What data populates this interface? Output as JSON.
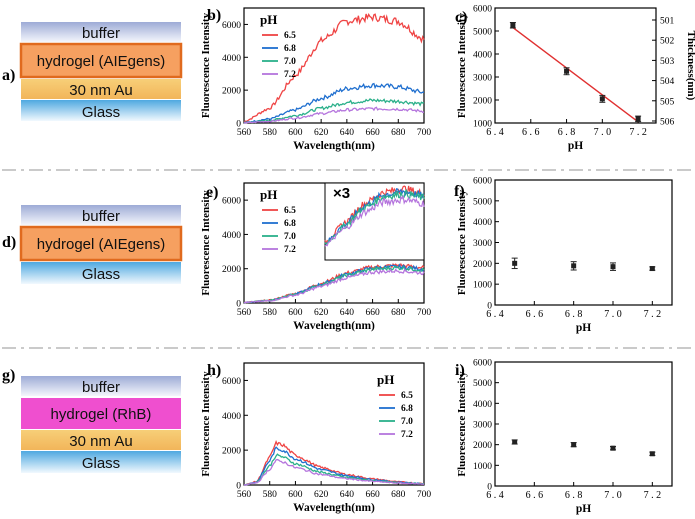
{
  "panels": {
    "a": {
      "label": "a)",
      "layers": [
        "buffer",
        "hydrogel (AIEgens)",
        "30 nm Au",
        "Glass"
      ]
    },
    "b": {
      "label": "b)"
    },
    "c": {
      "label": "c)"
    },
    "d": {
      "label": "d)",
      "layers": [
        "buffer",
        "hydrogel (AIEgens)",
        "Glass"
      ]
    },
    "e": {
      "label": "e)",
      "inset_label": "×3"
    },
    "f": {
      "label": "f)"
    },
    "g": {
      "label": "g)",
      "layers": [
        "buffer",
        "hydrogel (RhB)",
        "30 nm Au",
        "Glass"
      ]
    },
    "h": {
      "label": "h)"
    },
    "i": {
      "label": "i)"
    }
  },
  "colors": {
    "buffer_top": "#9dabd6",
    "buffer_bottom": "#f4f6fc",
    "hydrogel_aie": "#f6a060",
    "hydrogel_aie_border": "#e06a1e",
    "hydrogel_rhb": "#ef4fcf",
    "gold_top": "#f7cc73",
    "gold_bottom": "#f2b55a",
    "glass_top": "#5aaee2",
    "glass_bottom": "#eef7fd",
    "pH_6.5": "#ef4444",
    "pH_6.8": "#1f6fcf",
    "pH_7.0": "#2bb08a",
    "pH_7.2": "#b575dd",
    "fit_line": "#e03030",
    "separator": "#b8b8b8"
  },
  "chart_data": [
    {
      "id": "b",
      "type": "line",
      "xlabel": "Wavelength(nm)",
      "ylabel": "Fluorescence Intensity",
      "xlim": [
        560,
        700
      ],
      "ylim": [
        0,
        7000
      ],
      "xticks": [
        560,
        580,
        600,
        620,
        640,
        660,
        680,
        700
      ],
      "yticks": [
        0,
        2000,
        4000,
        6000
      ],
      "legend_title": "pH",
      "legend_position": "top-left",
      "series": [
        {
          "name": "6.5",
          "x": [
            560,
            580,
            600,
            620,
            640,
            660,
            680,
            700
          ],
          "values": [
            80,
            900,
            2900,
            5000,
            6200,
            6450,
            6200,
            5100
          ]
        },
        {
          "name": "6.8",
          "x": [
            560,
            580,
            600,
            620,
            640,
            660,
            680,
            700
          ],
          "values": [
            30,
            250,
            800,
            1500,
            2100,
            2300,
            2200,
            1850
          ]
        },
        {
          "name": "7.0",
          "x": [
            560,
            580,
            600,
            620,
            640,
            660,
            680,
            700
          ],
          "values": [
            20,
            150,
            450,
            900,
            1250,
            1380,
            1320,
            1150
          ]
        },
        {
          "name": "7.2",
          "x": [
            560,
            580,
            600,
            620,
            640,
            660,
            680,
            700
          ],
          "values": [
            10,
            100,
            300,
            580,
            800,
            870,
            850,
            720
          ]
        }
      ]
    },
    {
      "id": "c",
      "type": "scatter",
      "xlabel": "pH",
      "ylabel": "Fluorescence Intensity",
      "ylabel_right": "Thickness(nm)",
      "xlim": [
        6.4,
        7.3
      ],
      "ylim": [
        1000,
        6000
      ],
      "xticks": [
        6.4,
        6.6,
        6.8,
        7.0,
        7.2
      ],
      "yticks": [
        1000,
        2000,
        3000,
        4000,
        5000,
        6000
      ],
      "right_ticks": [
        501,
        502,
        503,
        504,
        505,
        506
      ],
      "x": [
        6.5,
        6.8,
        7.0,
        7.2
      ],
      "values": [
        5250,
        3250,
        2050,
        1180
      ],
      "fit_line": {
        "x": [
          6.5,
          7.2
        ],
        "y": [
          5150,
          1050
        ]
      }
    },
    {
      "id": "e",
      "type": "line",
      "xlabel": "Wavelength(nm)",
      "ylabel": "Fluorescence Intensity",
      "xlim": [
        560,
        700
      ],
      "ylim": [
        0,
        7000
      ],
      "xticks": [
        560,
        580,
        600,
        620,
        640,
        660,
        680,
        700
      ],
      "yticks": [
        0,
        2000,
        4000,
        6000
      ],
      "legend_title": "pH",
      "legend_position": "top-left",
      "series": [
        {
          "name": "6.5",
          "x": [
            560,
            580,
            600,
            620,
            640,
            660,
            680,
            700
          ],
          "values": [
            30,
            160,
            550,
            1150,
            1750,
            2100,
            2200,
            2050
          ]
        },
        {
          "name": "6.8",
          "x": [
            560,
            580,
            600,
            620,
            640,
            660,
            680,
            700
          ],
          "values": [
            30,
            150,
            520,
            1100,
            1680,
            2030,
            2120,
            1980
          ]
        },
        {
          "name": "7.0",
          "x": [
            560,
            580,
            600,
            620,
            640,
            660,
            680,
            700
          ],
          "values": [
            30,
            145,
            500,
            1060,
            1620,
            1970,
            2060,
            1920
          ]
        },
        {
          "name": "7.2",
          "x": [
            560,
            580,
            600,
            620,
            640,
            660,
            680,
            700
          ],
          "values": [
            25,
            130,
            460,
            970,
            1480,
            1800,
            1880,
            1750
          ]
        }
      ]
    },
    {
      "id": "f",
      "type": "scatter",
      "xlabel": "pH",
      "ylabel": "Fluorescence Intensity",
      "xlim": [
        6.4,
        7.3
      ],
      "ylim": [
        0,
        6000
      ],
      "xticks": [
        6.4,
        6.6,
        6.8,
        7.0,
        7.2
      ],
      "yticks": [
        0,
        1000,
        2000,
        3000,
        4000,
        5000,
        6000
      ],
      "x": [
        6.5,
        6.8,
        7.0,
        7.2
      ],
      "values": [
        2000,
        1880,
        1840,
        1750
      ],
      "errors": [
        250,
        200,
        180,
        80
      ]
    },
    {
      "id": "h",
      "type": "line",
      "xlabel": "Wavelength(nm)",
      "ylabel": "Fluorescence Intensity",
      "xlim": [
        560,
        700
      ],
      "ylim": [
        0,
        7000
      ],
      "xticks": [
        560,
        580,
        600,
        620,
        640,
        660,
        680,
        700
      ],
      "yticks": [
        0,
        2000,
        4000,
        6000
      ],
      "legend_title": "pH",
      "legend_position": "top-right",
      "series": [
        {
          "name": "6.5",
          "x": [
            560,
            570,
            580,
            585,
            590,
            600,
            620,
            640,
            660,
            680,
            700
          ],
          "values": [
            0,
            200,
            1600,
            2400,
            2300,
            1700,
            1000,
            600,
            350,
            180,
            80
          ]
        },
        {
          "name": "6.8",
          "x": [
            560,
            570,
            580,
            585,
            590,
            600,
            620,
            640,
            660,
            680,
            700
          ],
          "values": [
            0,
            180,
            1400,
            2100,
            2000,
            1500,
            880,
            530,
            310,
            160,
            70
          ]
        },
        {
          "name": "7.0",
          "x": [
            560,
            570,
            580,
            585,
            590,
            600,
            620,
            640,
            660,
            680,
            700
          ],
          "values": [
            0,
            150,
            1100,
            1700,
            1620,
            1220,
            720,
            430,
            250,
            130,
            60
          ]
        },
        {
          "name": "7.2",
          "x": [
            560,
            570,
            580,
            585,
            590,
            600,
            620,
            640,
            660,
            680,
            700
          ],
          "values": [
            0,
            130,
            900,
            1400,
            1330,
            1000,
            600,
            360,
            210,
            110,
            50
          ]
        }
      ]
    },
    {
      "id": "i",
      "type": "scatter",
      "xlabel": "pH",
      "ylabel": "Fluorescence Intensity",
      "xlim": [
        6.4,
        7.3
      ],
      "ylim": [
        0,
        6000
      ],
      "xticks": [
        6.4,
        6.6,
        6.8,
        7.0,
        7.2
      ],
      "yticks": [
        0,
        1000,
        2000,
        3000,
        4000,
        5000,
        6000
      ],
      "x": [
        6.5,
        6.8,
        7.0,
        7.2
      ],
      "values": [
        2130,
        2000,
        1830,
        1560
      ],
      "errors": [
        100,
        100,
        80,
        80
      ]
    }
  ]
}
